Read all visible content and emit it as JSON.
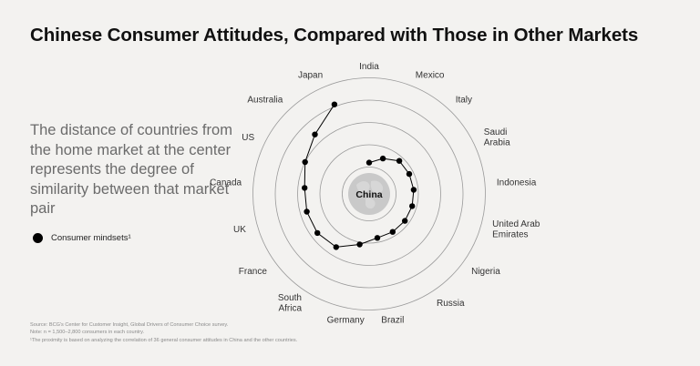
{
  "title": "Chinese Consumer Attitudes, Compared with Those in Other Markets",
  "description": "The distance of countries from the home market at the center represents the degree of similarity between that market pair",
  "legend": {
    "label": "Consumer mindsets¹"
  },
  "notes": [
    "Source: BCG's Center for Customer Insight, Global Drivers of Consumer Choice survey.",
    "Note: n = 1,500–2,800 consumers in each country.",
    "¹The proximity is based on analyzing the correlation of 36 general consumer attitudes in China and the other countries."
  ],
  "chart_data": {
    "type": "radar",
    "center_label": "China",
    "center_icon": "globe-icon",
    "rings": 5,
    "categories": [
      "India",
      "Mexico",
      "Italy",
      "Saudi\nArabia",
      "Indonesia",
      "United Arab\nEmirates",
      "Nigeria",
      "Russia",
      "Brazil",
      "Germany",
      "South\nAfrica",
      "France",
      "UK",
      "Canada",
      "US",
      "Australia",
      "Japan"
    ],
    "series": [
      {
        "name": "Consumer mindsets¹",
        "values": [
          1.7,
          2.0,
          2.3,
          2.3,
          2.3,
          2.3,
          2.3,
          2.3,
          2.3,
          2.6,
          3.1,
          3.2,
          3.2,
          3.2,
          3.5,
          3.9,
          4.6
        ]
      }
    ],
    "scale": "1–5 rings, lower = more similar to China",
    "colors": {
      "line": "#000000",
      "ring": "#9a9a9a",
      "center": "#c9c9c9",
      "background": "#f3f2f0"
    }
  }
}
